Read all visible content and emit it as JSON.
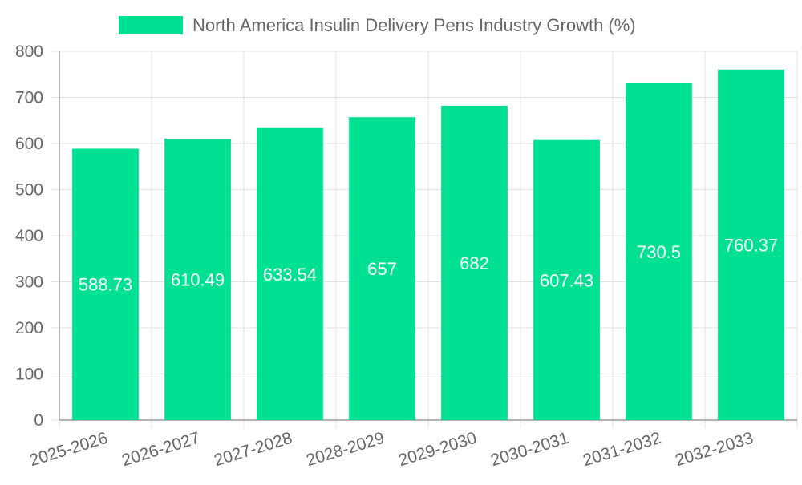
{
  "chart_data": {
    "type": "bar",
    "categories": [
      "2025-2026",
      "2026-2027",
      "2027-2028",
      "2028-2029",
      "2029-2030",
      "2030-2031",
      "2031-2032",
      "2032-2033"
    ],
    "series": [
      {
        "name": "North America Insulin Delivery Pens Industry Growth (%)",
        "values": [
          588.73,
          610.49,
          633.54,
          657,
          682,
          607.43,
          730.5,
          760.37
        ],
        "color": "#00e092"
      }
    ],
    "y_ticks": [
      "0",
      "100",
      "200",
      "300",
      "400",
      "500",
      "600",
      "700",
      "800"
    ],
    "ylim": [
      0,
      800
    ],
    "grid": true,
    "legend": "top-center",
    "data_labels": [
      "588.73",
      "610.49",
      "633.54",
      "657",
      "682",
      "607.43",
      "730.5",
      "760.37"
    ],
    "colors": {
      "bar": "#00e092",
      "grid": "#e0e0e0",
      "axis": "#999999",
      "tick_text": "#666666",
      "label_text": "#ffffff"
    }
  }
}
